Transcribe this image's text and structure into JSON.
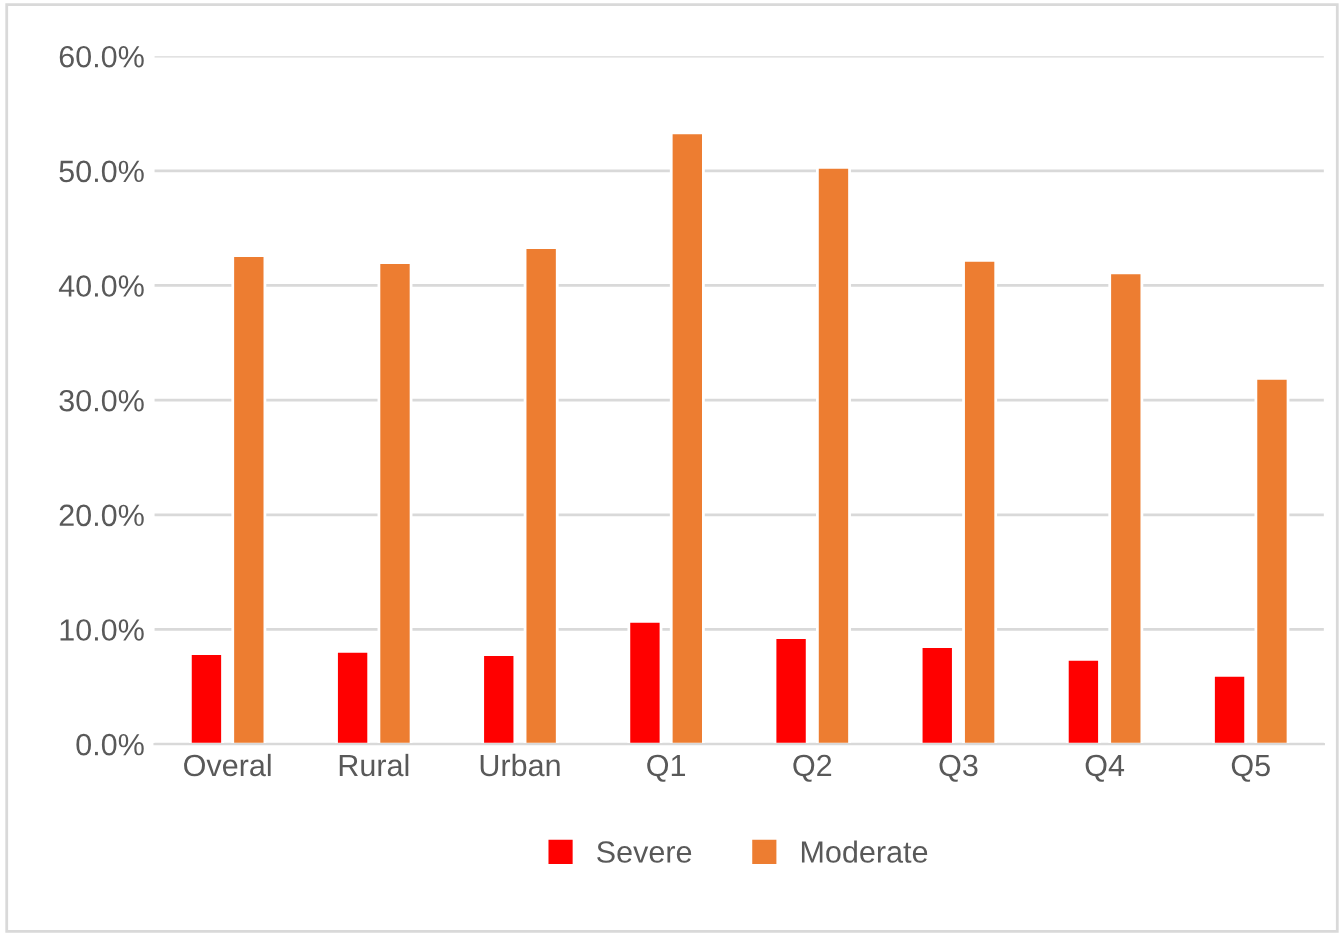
{
  "chart_data": {
    "type": "bar",
    "categories": [
      "Overal",
      "Rural",
      "Urban",
      "Q1",
      "Q2",
      "Q3",
      "Q4",
      "Q5"
    ],
    "series": [
      {
        "name": "Severe",
        "color": "#ff0000",
        "values": [
          7.9,
          8.1,
          7.8,
          10.7,
          9.3,
          8.5,
          7.4,
          6.0
        ]
      },
      {
        "name": "Moderate",
        "color": "#ed7d31",
        "values": [
          42.6,
          42.0,
          43.3,
          53.3,
          50.3,
          42.2,
          41.1,
          31.9
        ]
      }
    ],
    "ylim": [
      0,
      60
    ],
    "yticks": [
      {
        "value": 0,
        "label": "0.0%"
      },
      {
        "value": 10,
        "label": "10.0%"
      },
      {
        "value": 20,
        "label": "20.0%"
      },
      {
        "value": 30,
        "label": "30.0%"
      },
      {
        "value": 40,
        "label": "40.0%"
      },
      {
        "value": 50,
        "label": "50.0%"
      },
      {
        "value": 60,
        "label": "60.0%"
      }
    ],
    "grid": "y",
    "legend": "bottom"
  }
}
